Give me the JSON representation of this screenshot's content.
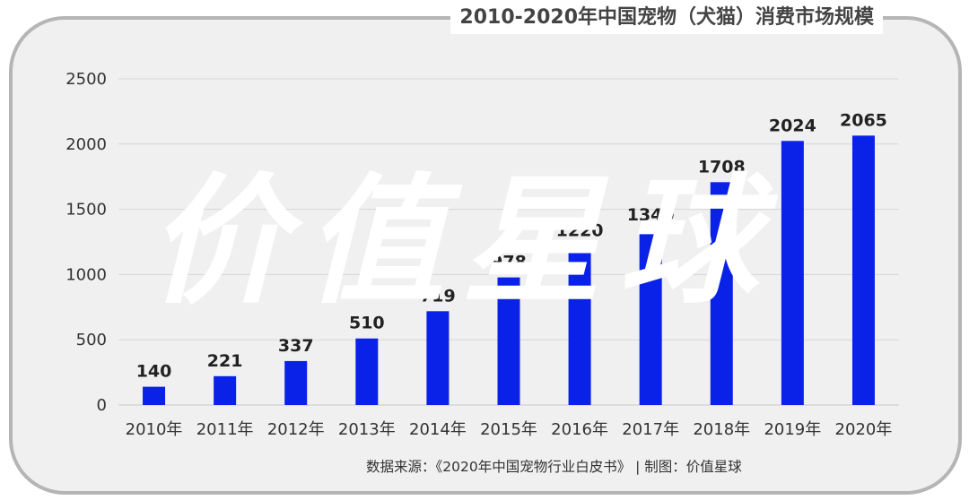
{
  "title": "2010-2020年中国宠物（犬猫）消费市场规模",
  "watermark": "价值星球",
  "source": "数据来源：《2020年中国宠物行业白皮书》   |   制图：价值星球",
  "colors": {
    "bar": "#0a22e8",
    "panel": "#f0f0f0",
    "frame": "#b5b5b5",
    "grid": "#d6d6d6"
  },
  "chart_data": {
    "type": "bar",
    "title": "2010-2020年中国宠物（犬猫）消费市场规模",
    "categories": [
      "2010年",
      "2011年",
      "2012年",
      "2013年",
      "2014年",
      "2015年",
      "2016年",
      "2017年",
      "2018年",
      "2019年",
      "2020年"
    ],
    "values": [
      140,
      221,
      337,
      510,
      719,
      978,
      1220,
      1340,
      1708,
      2024,
      2065
    ],
    "data_labels": [
      "140",
      "221",
      "337",
      "510",
      "719",
      "978",
      "1220",
      "1340",
      "1708",
      "2024",
      "2065"
    ],
    "ylim": [
      0,
      2500
    ],
    "yticks": [
      0,
      500,
      1000,
      1500,
      2000,
      2500
    ],
    "ytick_labels": [
      "0",
      "500",
      "1000",
      "1500",
      "2000",
      "2500"
    ],
    "grid": true,
    "legend": "none"
  }
}
